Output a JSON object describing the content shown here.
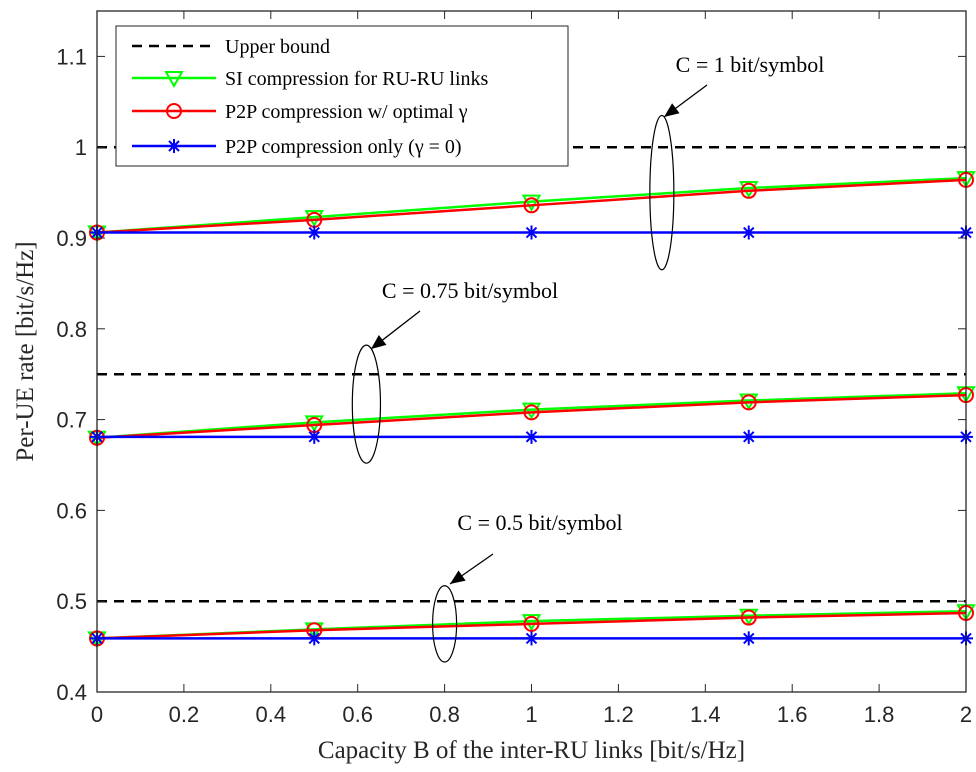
{
  "chart_data": {
    "type": "line",
    "xlabel": "Capacity B of the inter-RU links [bit/s/Hz]",
    "ylabel": "Per-UE rate [bit/s/Hz]",
    "xlim": [
      0,
      2
    ],
    "ylim": [
      0.4,
      1.15
    ],
    "x_ticks": [
      "0",
      "0.2",
      "0.4",
      "0.6",
      "0.8",
      "1",
      "1.2",
      "1.4",
      "1.6",
      "1.8",
      "2"
    ],
    "y_ticks": [
      "0.4",
      "0.5",
      "0.6",
      "0.7",
      "0.8",
      "0.9",
      "1",
      "1.1"
    ],
    "grid": false,
    "legend_position": "top-left",
    "x": [
      0,
      0.5,
      1,
      1.5,
      2
    ],
    "series": [
      {
        "name": "Upper bound",
        "color": "#000000",
        "style": "dashed",
        "marker": "none",
        "groups": [
          {
            "x": [
              0,
              2
            ],
            "values": [
              1,
              1
            ]
          },
          {
            "x": [
              0,
              2
            ],
            "values": [
              0.75,
              0.75
            ]
          },
          {
            "x": [
              0,
              2
            ],
            "values": [
              0.5,
              0.5
            ]
          }
        ]
      },
      {
        "name": "SI compression for RU-RU links",
        "color": "#00ff00",
        "style": "solid",
        "marker": "triangle-down",
        "groups": [
          {
            "x": [
              0,
              0.5,
              1,
              1.5,
              2
            ],
            "values": [
              0.906,
              0.923,
              0.94,
              0.955,
              0.966
            ]
          },
          {
            "x": [
              0,
              0.5,
              1,
              1.5,
              2
            ],
            "values": [
              0.68,
              0.697,
              0.711,
              0.721,
              0.729
            ]
          },
          {
            "x": [
              0,
              0.5,
              1,
              1.5,
              2
            ],
            "values": [
              0.459,
              0.469,
              0.478,
              0.484,
              0.489
            ]
          }
        ]
      },
      {
        "name": "P2P compression w/ optimal γ",
        "color": "#ff0000",
        "style": "solid",
        "marker": "circle",
        "groups": [
          {
            "x": [
              0,
              0.5,
              1,
              1.5,
              2
            ],
            "values": [
              0.906,
              0.92,
              0.936,
              0.952,
              0.964
            ]
          },
          {
            "x": [
              0,
              0.5,
              1,
              1.5,
              2
            ],
            "values": [
              0.68,
              0.694,
              0.708,
              0.719,
              0.727
            ]
          },
          {
            "x": [
              0,
              0.5,
              1,
              1.5,
              2
            ],
            "values": [
              0.459,
              0.468,
              0.475,
              0.482,
              0.487
            ]
          }
        ]
      },
      {
        "name": "P2P compression only (γ = 0)",
        "color": "#0000ff",
        "style": "solid",
        "marker": "asterisk",
        "groups": [
          {
            "x": [
              0,
              0.5,
              1,
              1.5,
              2
            ],
            "values": [
              0.906,
              0.906,
              0.906,
              0.906,
              0.906
            ]
          },
          {
            "x": [
              0,
              0.5,
              1,
              1.5,
              2
            ],
            "values": [
              0.681,
              0.681,
              0.681,
              0.681,
              0.681
            ]
          },
          {
            "x": [
              0,
              0.5,
              1,
              1.5,
              2
            ],
            "values": [
              0.459,
              0.459,
              0.459,
              0.459,
              0.459
            ]
          }
        ]
      }
    ],
    "annotations": [
      {
        "text": "C = 1 bit/symbol",
        "ellipse_center": [
          1.3,
          0.95
        ],
        "ellipse_rx": 0.14,
        "ellipse_ry": 0.085
      },
      {
        "text": "C = 0.75 bit/symbol",
        "ellipse_center": [
          0.62,
          0.717
        ],
        "ellipse_rx": 0.18,
        "ellipse_ry": 0.065
      },
      {
        "text": "C = 0.5 bit/symbol",
        "ellipse_center": [
          0.8,
          0.475
        ],
        "ellipse_rx": 0.12,
        "ellipse_ry": 0.042
      }
    ]
  }
}
